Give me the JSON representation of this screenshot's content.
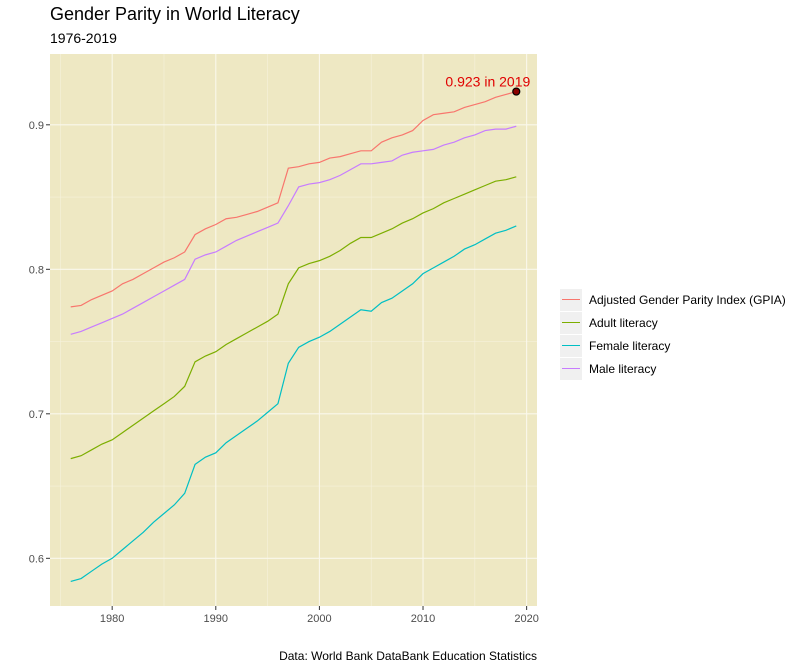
{
  "title": "Gender Parity in World Literacy",
  "subtitle": "1976-2019",
  "caption": "Data: World Bank DataBank Education Statistics",
  "colors": {
    "panel_background": "#eee8c3",
    "annotation": "#e00000"
  },
  "annotation": {
    "text": "0.923 in 2019",
    "x": 2019,
    "y": 0.923
  },
  "chart_data": {
    "type": "line",
    "title": "Gender Parity in World Literacy",
    "subtitle": "1976-2019",
    "xlabel": "",
    "ylabel": "",
    "xlim": [
      1974,
      2021
    ],
    "ylim": [
      0.567,
      0.949
    ],
    "x_ticks": [
      1980,
      1990,
      2000,
      2010,
      2020
    ],
    "y_ticks": [
      0.6,
      0.7,
      0.8,
      0.9
    ],
    "y_tick_labels": [
      "0.6",
      "0.7",
      "0.8",
      "0.9"
    ],
    "grid": true,
    "legend_position": "right",
    "x": [
      1976,
      1977,
      1978,
      1979,
      1980,
      1981,
      1982,
      1983,
      1984,
      1985,
      1986,
      1987,
      1988,
      1989,
      1990,
      1991,
      1992,
      1993,
      1994,
      1995,
      1996,
      1997,
      1998,
      1999,
      2000,
      2001,
      2002,
      2003,
      2004,
      2005,
      2006,
      2007,
      2008,
      2009,
      2010,
      2011,
      2012,
      2013,
      2014,
      2015,
      2016,
      2017,
      2018,
      2019
    ],
    "series": [
      {
        "name": "Adjusted Gender Parity Index (GPIA)",
        "color": "#f8766d",
        "values": [
          0.774,
          0.775,
          0.779,
          0.782,
          0.785,
          0.79,
          0.793,
          0.797,
          0.801,
          0.805,
          0.808,
          0.812,
          0.824,
          0.828,
          0.831,
          0.835,
          0.836,
          0.838,
          0.84,
          0.843,
          0.846,
          0.87,
          0.871,
          0.873,
          0.874,
          0.877,
          0.878,
          0.88,
          0.882,
          0.882,
          0.888,
          0.891,
          0.893,
          0.896,
          0.903,
          0.907,
          0.908,
          0.909,
          0.912,
          0.914,
          0.916,
          0.919,
          0.921,
          0.923
        ]
      },
      {
        "name": "Adult literacy",
        "color": "#7cae00",
        "values": [
          0.669,
          0.671,
          0.675,
          0.679,
          0.682,
          0.687,
          0.692,
          0.697,
          0.702,
          0.707,
          0.712,
          0.719,
          0.736,
          0.74,
          0.743,
          0.748,
          0.752,
          0.756,
          0.76,
          0.764,
          0.769,
          0.79,
          0.801,
          0.804,
          0.806,
          0.809,
          0.813,
          0.818,
          0.822,
          0.822,
          0.825,
          0.828,
          0.832,
          0.835,
          0.839,
          0.842,
          0.846,
          0.849,
          0.852,
          0.855,
          0.858,
          0.861,
          0.862,
          0.864
        ]
      },
      {
        "name": "Female literacy",
        "color": "#00bfc4",
        "values": [
          0.584,
          0.586,
          0.591,
          0.596,
          0.6,
          0.606,
          0.612,
          0.618,
          0.625,
          0.631,
          0.637,
          0.645,
          0.665,
          0.67,
          0.673,
          0.68,
          0.685,
          0.69,
          0.695,
          0.701,
          0.707,
          0.735,
          0.746,
          0.75,
          0.753,
          0.757,
          0.762,
          0.767,
          0.772,
          0.771,
          0.777,
          0.78,
          0.785,
          0.79,
          0.797,
          0.801,
          0.805,
          0.809,
          0.814,
          0.817,
          0.821,
          0.825,
          0.827,
          0.83
        ]
      },
      {
        "name": "Male literacy",
        "color": "#c77cff",
        "values": [
          0.755,
          0.757,
          0.76,
          0.763,
          0.766,
          0.769,
          0.773,
          0.777,
          0.781,
          0.785,
          0.789,
          0.793,
          0.807,
          0.81,
          0.812,
          0.816,
          0.82,
          0.823,
          0.826,
          0.829,
          0.832,
          0.844,
          0.857,
          0.859,
          0.86,
          0.862,
          0.865,
          0.869,
          0.873,
          0.873,
          0.874,
          0.875,
          0.879,
          0.881,
          0.882,
          0.883,
          0.886,
          0.888,
          0.891,
          0.893,
          0.896,
          0.897,
          0.897,
          0.899
        ]
      }
    ]
  }
}
